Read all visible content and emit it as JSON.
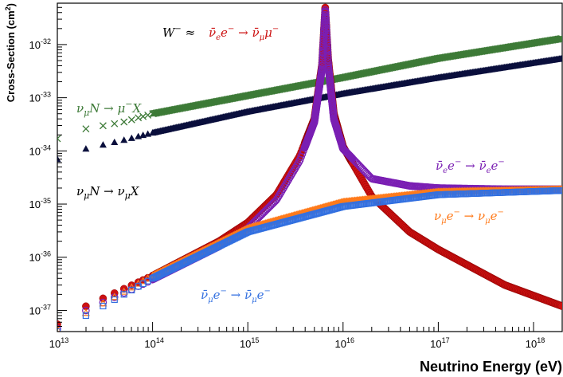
{
  "chart_data": {
    "type": "scatter",
    "title": "",
    "xlabel": "Neutrino Energy (eV)",
    "ylabel": "Cross-Section (cm^2)",
    "xscale": "log",
    "yscale": "log",
    "xlim": [
      10000000000000.0,
      2e+18
    ],
    "ylim": [
      4e-38,
      6e-32
    ],
    "x_ticks": [
      {
        "base": "10",
        "exp": "13"
      },
      {
        "base": "10",
        "exp": "14"
      },
      {
        "base": "10",
        "exp": "15"
      },
      {
        "base": "10",
        "exp": "16"
      },
      {
        "base": "10",
        "exp": "17"
      },
      {
        "base": "10",
        "exp": "18"
      }
    ],
    "y_ticks": [
      {
        "base": "10",
        "exp": "-37"
      },
      {
        "base": "10",
        "exp": "-36"
      },
      {
        "base": "10",
        "exp": "-35"
      },
      {
        "base": "10",
        "exp": "-34"
      },
      {
        "base": "10",
        "exp": "-33"
      },
      {
        "base": "10",
        "exp": "-32"
      }
    ],
    "grid": false,
    "legend": "none",
    "series": [
      {
        "color": "#3d7a37",
        "marker": "x",
        "x": [
          10000000000000.0,
          20000000000000.0,
          50000000000000.0,
          100000000000000.0,
          1000000000000000.0,
          1e+16,
          1e+17,
          2e+18
        ],
        "y": [
          1.7e-34,
          2.6e-34,
          3.5e-34,
          5e-34,
          1.1e-33,
          2.4e-33,
          5.5e-33,
          1.3e-32
        ]
      },
      {
        "color": "#0a0f3c",
        "marker": "triangle",
        "x": [
          10000000000000.0,
          20000000000000.0,
          50000000000000.0,
          100000000000000.0,
          1000000000000000.0,
          1e+16,
          1e+17,
          2e+18
        ],
        "y": [
          7e-35,
          1.1e-34,
          1.6e-34,
          2.2e-34,
          5.5e-34,
          1.2e-33,
          2.4e-33,
          5.5e-33
        ]
      },
      {
        "color": "#cc1111",
        "marker": "circle-filled",
        "x": [
          10000000000000.0,
          20000000000000.0,
          100000000000000.0,
          500000000000000.0,
          1000000000000000.0,
          2000000000000000.0,
          3500000000000000.0,
          5000000000000000.0,
          6000000000000000.0,
          6500000000000000.0,
          7000000000000000.0,
          8000000000000000.0,
          1e+16,
          2e+16,
          5e+16,
          1e+17,
          5e+17,
          2e+18
        ],
        "y": [
          5.5e-38,
          1.2e-37,
          4.5e-37,
          2e-36,
          4.5e-36,
          1.5e-35,
          8e-35,
          4e-34,
          4e-33,
          5e-32,
          5e-33,
          5e-34,
          1.2e-34,
          1.4e-35,
          3e-36,
          1.4e-36,
          3e-37,
          1.2e-37
        ]
      },
      {
        "color": "#7a1fb3",
        "marker": "circle-open",
        "x": [
          10000000000000.0,
          20000000000000.0,
          100000000000000.0,
          500000000000000.0,
          1000000000000000.0,
          2000000000000000.0,
          3500000000000000.0,
          5000000000000000.0,
          6000000000000000.0,
          6500000000000000.0,
          7000000000000000.0,
          8000000000000000.0,
          1e+16,
          2e+16,
          5e+16,
          1e+17,
          5e+17,
          2e+18
        ],
        "y": [
          4.5e-38,
          1e-37,
          3.8e-37,
          1.6e-36,
          3.5e-36,
          1.2e-35,
          6.5e-35,
          3.5e-34,
          3.5e-33,
          4.5e-32,
          4e-33,
          4e-34,
          1.1e-34,
          3e-35,
          2.2e-35,
          2e-35,
          1.9e-35,
          1.9e-35
        ]
      },
      {
        "color": "#ff7a1a",
        "marker": "triangle-open",
        "x": [
          10000000000000.0,
          20000000000000.0,
          100000000000000.0,
          1000000000000000.0,
          1e+16,
          1e+17,
          2e+18
        ],
        "y": [
          4.5e-38,
          9e-38,
          4.5e-37,
          3.5e-36,
          1.1e-35,
          1.7e-35,
          1.9e-35
        ]
      },
      {
        "color": "#3370e0",
        "marker": "square-open",
        "x": [
          10000000000000.0,
          20000000000000.0,
          100000000000000.0,
          1000000000000000.0,
          1e+16,
          1e+17,
          2e+18
        ],
        "y": [
          4e-38,
          8e-38,
          4e-37,
          3e-36,
          9e-36,
          1.5e-35,
          1.8e-35
        ]
      }
    ],
    "annotations": [
      {
        "color": "#000000",
        "parts": [
          {
            "t": "W"
          },
          {
            "t": "−",
            "sup": true
          },
          {
            "t": " ≈ "
          }
        ]
      },
      {
        "color": "#cc1111",
        "parts": [
          {
            "t": "ν̄"
          },
          {
            "t": "e",
            "sub": true
          },
          {
            "t": "e"
          },
          {
            "t": "−",
            "sup": true
          },
          {
            "t": " → "
          },
          {
            "t": "ν̄"
          },
          {
            "t": "μ",
            "sub": true
          },
          {
            "t": "μ"
          },
          {
            "t": "−",
            "sup": true
          }
        ]
      },
      {
        "color": "#3d7a37",
        "parts": [
          {
            "t": "ν"
          },
          {
            "t": "μ",
            "sub": true
          },
          {
            "t": "N → μ"
          },
          {
            "t": "−",
            "sup": true
          },
          {
            "t": "X"
          }
        ]
      },
      {
        "color": "#000000",
        "parts": [
          {
            "t": "ν"
          },
          {
            "t": "μ",
            "sub": true
          },
          {
            "t": "N → ν"
          },
          {
            "t": "μ",
            "sub": true
          },
          {
            "t": "X"
          }
        ]
      },
      {
        "color": "#7a1fb3",
        "parts": [
          {
            "t": "ν̄"
          },
          {
            "t": "e",
            "sub": true
          },
          {
            "t": "e"
          },
          {
            "t": "−",
            "sup": true
          },
          {
            "t": " → "
          },
          {
            "t": "ν̄"
          },
          {
            "t": "e",
            "sub": true
          },
          {
            "t": "e"
          },
          {
            "t": "−",
            "sup": true
          }
        ]
      },
      {
        "color": "#ff7a1a",
        "parts": [
          {
            "t": "ν"
          },
          {
            "t": "μ",
            "sub": true
          },
          {
            "t": "e"
          },
          {
            "t": "−",
            "sup": true
          },
          {
            "t": " → ν"
          },
          {
            "t": "μ",
            "sub": true
          },
          {
            "t": "e"
          },
          {
            "t": "−",
            "sup": true
          }
        ]
      },
      {
        "color": "#3370e0",
        "parts": [
          {
            "t": "ν̄"
          },
          {
            "t": "μ",
            "sub": true
          },
          {
            "t": "e"
          },
          {
            "t": "−",
            "sup": true
          },
          {
            "t": " → "
          },
          {
            "t": "ν̄"
          },
          {
            "t": "μ",
            "sub": true
          },
          {
            "t": "e"
          },
          {
            "t": "−",
            "sup": true
          }
        ]
      }
    ]
  }
}
